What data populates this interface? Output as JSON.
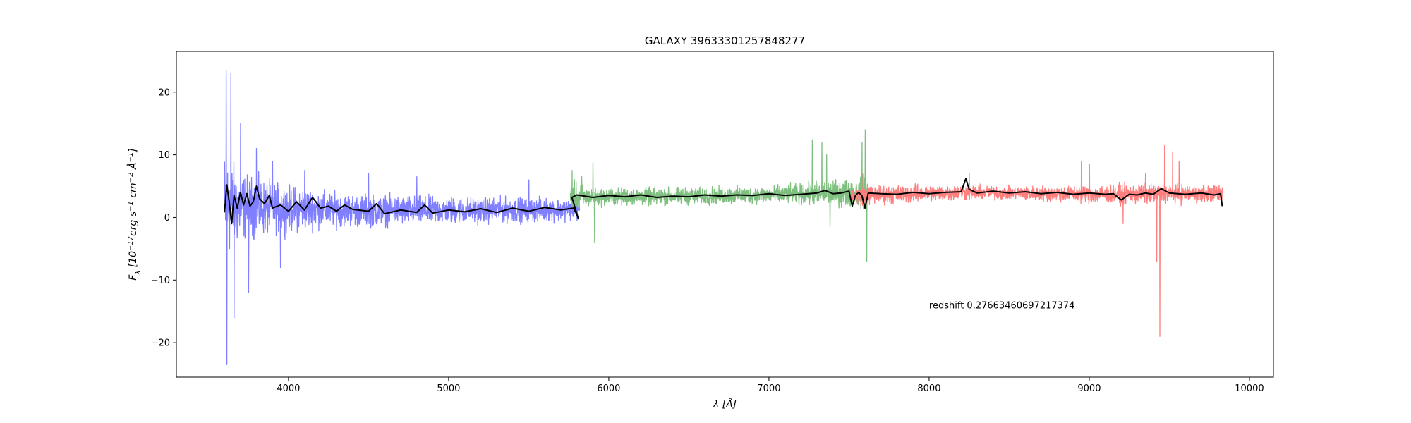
{
  "chart_data": {
    "type": "line",
    "title": "GALAXY 39633301257848277",
    "xlabel": "λ [Å]",
    "ylabel": "F_λ [10^-17 erg s^-1 cm^-2 Å^-1]",
    "xlim": [
      3300,
      10150
    ],
    "ylim": [
      -25.5,
      26.5
    ],
    "x_ticks": [
      4000,
      5000,
      6000,
      7000,
      8000,
      9000,
      10000
    ],
    "y_ticks": [
      -20,
      -10,
      0,
      10,
      20
    ],
    "y_tick_labels": [
      "−20",
      "−10",
      "0",
      "10",
      "20"
    ],
    "grid": false,
    "annotations": [
      {
        "text": "redshift 0.27663460697217374",
        "x": 8000,
        "y": -14.5
      }
    ],
    "series": [
      {
        "key": "b",
        "color": "#7f7fff",
        "x_range": [
          3600,
          5820
        ],
        "baseline": [
          [
            3600,
            1.8
          ],
          [
            4000,
            1.4
          ],
          [
            4500,
            1.1
          ],
          [
            5000,
            1.1
          ],
          [
            5500,
            1.2
          ],
          [
            5820,
            1.3
          ]
        ],
        "noise_amp": [
          [
            3600,
            10
          ],
          [
            3700,
            6
          ],
          [
            3900,
            4.5
          ],
          [
            4300,
            3
          ],
          [
            5000,
            2.4
          ],
          [
            5820,
            2.0
          ]
        ],
        "spikes": [
          [
            3610,
            23.5
          ],
          [
            3615,
            -23.5
          ],
          [
            3640,
            23
          ],
          [
            3660,
            -16
          ],
          [
            3700,
            15
          ],
          [
            3750,
            -12
          ],
          [
            3800,
            11
          ],
          [
            3900,
            9
          ],
          [
            3950,
            -8
          ],
          [
            4100,
            7.5
          ],
          [
            4500,
            7
          ],
          [
            4800,
            6.5
          ],
          [
            5500,
            6
          ]
        ]
      },
      {
        "key": "g",
        "color": "#7fbf7f",
        "x_range": [
          5760,
          7620
        ],
        "baseline": [
          [
            5760,
            3.2
          ],
          [
            6500,
            3.4
          ],
          [
            7000,
            3.6
          ],
          [
            7620,
            4.0
          ]
        ],
        "noise_amp": [
          [
            5760,
            3
          ],
          [
            5900,
            1.6
          ],
          [
            7000,
            1.5
          ],
          [
            7500,
            2.5
          ],
          [
            7620,
            3
          ]
        ],
        "spikes": [
          [
            5770,
            7.5
          ],
          [
            5830,
            6.5
          ],
          [
            5900,
            8.8
          ],
          [
            5910,
            -4
          ],
          [
            7270,
            12.4
          ],
          [
            7330,
            12
          ],
          [
            7360,
            10
          ],
          [
            7380,
            -1.5
          ],
          [
            7600,
            14
          ],
          [
            7610,
            -7
          ],
          [
            7580,
            12
          ]
        ]
      },
      {
        "key": "r",
        "color": "#ff7f7f",
        "x_range": [
          7520,
          9830
        ],
        "baseline": [
          [
            7520,
            3.5
          ],
          [
            8200,
            4.0
          ],
          [
            9000,
            3.7
          ],
          [
            9830,
            3.8
          ]
        ],
        "noise_amp": [
          [
            7520,
            1.8
          ],
          [
            8500,
            1.2
          ],
          [
            9300,
            1.8
          ],
          [
            9830,
            1.5
          ]
        ],
        "spikes": [
          [
            7580,
            7
          ],
          [
            8250,
            7
          ],
          [
            8950,
            9
          ],
          [
            9000,
            8.5
          ],
          [
            9210,
            -1
          ],
          [
            9350,
            7
          ],
          [
            9420,
            -7
          ],
          [
            9440,
            -19
          ],
          [
            9470,
            11.5
          ],
          [
            9520,
            10.5
          ],
          [
            9560,
            9
          ]
        ]
      },
      {
        "key": "model",
        "color": "#000000",
        "x_range": [
          3600,
          9830
        ],
        "points": [
          [
            3600,
            0.8
          ],
          [
            3615,
            5.2
          ],
          [
            3630,
            2.5
          ],
          [
            3645,
            -1.0
          ],
          [
            3660,
            3.5
          ],
          [
            3680,
            1.5
          ],
          [
            3700,
            4.0
          ],
          [
            3720,
            2.0
          ],
          [
            3740,
            3.8
          ],
          [
            3760,
            1.8
          ],
          [
            3780,
            2.5
          ],
          [
            3800,
            5.0
          ],
          [
            3820,
            3.0
          ],
          [
            3850,
            2.2
          ],
          [
            3880,
            3.5
          ],
          [
            3900,
            1.5
          ],
          [
            3950,
            2.0
          ],
          [
            4000,
            1.0
          ],
          [
            4050,
            2.5
          ],
          [
            4100,
            1.2
          ],
          [
            4150,
            3.2
          ],
          [
            4200,
            1.5
          ],
          [
            4250,
            1.8
          ],
          [
            4300,
            1.0
          ],
          [
            4350,
            2.0
          ],
          [
            4400,
            1.3
          ],
          [
            4500,
            1.0
          ],
          [
            4550,
            2.2
          ],
          [
            4600,
            0.6
          ],
          [
            4700,
            1.2
          ],
          [
            4800,
            0.8
          ],
          [
            4850,
            2.0
          ],
          [
            4900,
            0.7
          ],
          [
            5000,
            1.2
          ],
          [
            5100,
            0.9
          ],
          [
            5200,
            1.4
          ],
          [
            5300,
            0.8
          ],
          [
            5400,
            1.5
          ],
          [
            5500,
            1.0
          ],
          [
            5600,
            1.6
          ],
          [
            5700,
            1.2
          ],
          [
            5780,
            1.5
          ],
          [
            5800,
            0.5
          ],
          [
            5810,
            -0.2
          ],
          [
            5770,
            3.2
          ],
          [
            5800,
            3.6
          ],
          [
            5900,
            3.2
          ],
          [
            6000,
            3.5
          ],
          [
            6100,
            3.3
          ],
          [
            6200,
            3.6
          ],
          [
            6300,
            3.2
          ],
          [
            6400,
            3.4
          ],
          [
            6500,
            3.3
          ],
          [
            6600,
            3.6
          ],
          [
            6700,
            3.4
          ],
          [
            6800,
            3.6
          ],
          [
            6900,
            3.5
          ],
          [
            7000,
            3.8
          ],
          [
            7100,
            3.5
          ],
          [
            7200,
            3.7
          ],
          [
            7300,
            3.9
          ],
          [
            7350,
            4.3
          ],
          [
            7400,
            3.8
          ],
          [
            7450,
            3.9
          ],
          [
            7500,
            4.2
          ],
          [
            7520,
            1.8
          ],
          [
            7540,
            3.5
          ],
          [
            7560,
            4.0
          ],
          [
            7580,
            3.5
          ],
          [
            7600,
            1.5
          ],
          [
            7620,
            3.9
          ],
          [
            7700,
            3.8
          ],
          [
            7800,
            3.7
          ],
          [
            7900,
            4.0
          ],
          [
            8000,
            3.8
          ],
          [
            8100,
            4.0
          ],
          [
            8200,
            4.1
          ],
          [
            8230,
            6.2
          ],
          [
            8250,
            4.5
          ],
          [
            8300,
            3.9
          ],
          [
            8400,
            4.2
          ],
          [
            8500,
            3.9
          ],
          [
            8600,
            4.1
          ],
          [
            8700,
            3.8
          ],
          [
            8800,
            4.0
          ],
          [
            8900,
            3.7
          ],
          [
            9000,
            3.9
          ],
          [
            9100,
            3.7
          ],
          [
            9150,
            3.8
          ],
          [
            9200,
            2.8
          ],
          [
            9250,
            3.7
          ],
          [
            9300,
            3.6
          ],
          [
            9350,
            3.9
          ],
          [
            9400,
            3.7
          ],
          [
            9450,
            4.6
          ],
          [
            9500,
            3.9
          ],
          [
            9600,
            3.7
          ],
          [
            9700,
            3.9
          ],
          [
            9780,
            3.6
          ],
          [
            9820,
            3.8
          ],
          [
            9830,
            1.8
          ]
        ]
      }
    ]
  }
}
